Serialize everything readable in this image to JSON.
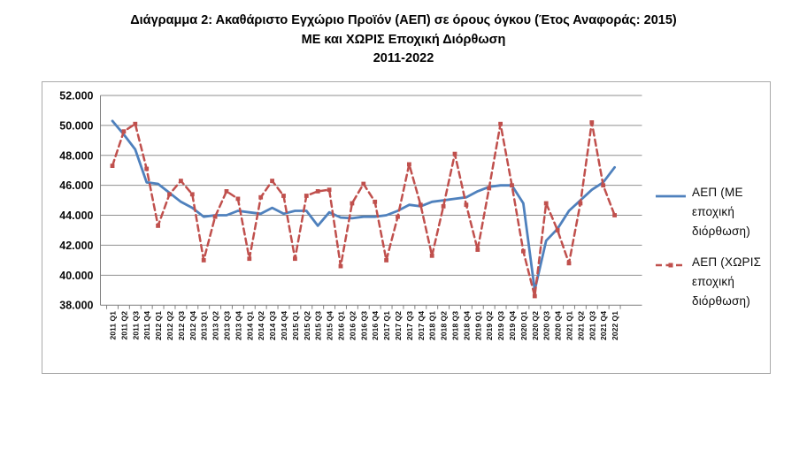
{
  "title": {
    "line1": "Διάγραμμα 2: Ακαθάριστο Εγχώριο Προϊόν (ΑΕΠ) σε όρους όγκου (Έτος Αναφοράς: 2015)",
    "line2": "ΜΕ και ΧΩΡΙΣ Εποχική Διόρθωση",
    "line3": "2011-2022"
  },
  "legend": {
    "items": [
      {
        "label": "ΑΕΠ (ΜΕ εποχική διόρθωση)",
        "color": "#4F81BD",
        "line_style": "solid",
        "marker": "none"
      },
      {
        "label": "ΑΕΠ (ΧΩΡΙΣ εποχική διόρθωση)",
        "color": "#C0504D",
        "line_style": "dashed",
        "marker": "square"
      }
    ]
  },
  "chart_data": {
    "type": "line",
    "title": "Διάγραμμα 2: Ακαθάριστο Εγχώριο Προϊόν (ΑΕΠ) σε όρους όγκου (Έτος Αναφοράς: 2015) ΜΕ και ΧΩΡΙΣ Εποχική Διόρθωση 2011-2022",
    "xlabel": "",
    "ylabel": "",
    "ylim": [
      38000,
      52000
    ],
    "y_tick_step": 2000,
    "grid": "horizontal",
    "legend_position": "right",
    "y_ticks": [
      {
        "value": 52000,
        "label": "52.000"
      },
      {
        "value": 50000,
        "label": "50.000"
      },
      {
        "value": 48000,
        "label": "48.000"
      },
      {
        "value": 46000,
        "label": "46.000"
      },
      {
        "value": 44000,
        "label": "44.000"
      },
      {
        "value": 42000,
        "label": "42.000"
      },
      {
        "value": 40000,
        "label": "40.000"
      },
      {
        "value": 38000,
        "label": "38.000"
      }
    ],
    "categories": [
      "2011 Q1",
      "2011 Q2",
      "2011 Q3",
      "2011 Q4",
      "2012 Q1",
      "2012 Q2",
      "2012 Q3",
      "2012 Q4",
      "2013 Q1",
      "2013 Q2",
      "2013 Q3",
      "2013 Q4",
      "2014 Q1",
      "2014 Q2",
      "2014 Q3",
      "2014 Q4",
      "2015 Q1",
      "2015 Q2",
      "2015 Q3",
      "2015 Q4",
      "2016 Q1",
      "2016 Q2",
      "2016 Q3",
      "2016 Q4",
      "2017 Q1",
      "2017 Q2",
      "2017 Q3",
      "2017 Q4",
      "2018 Q1",
      "2018 Q2",
      "2018 Q3",
      "2018 Q4",
      "2019 Q1",
      "2019 Q2",
      "2019 Q3",
      "2019 Q4",
      "2020 Q1",
      "2020 Q2",
      "2020 Q3",
      "2020 Q4",
      "2021 Q1",
      "2021 Q2",
      "2021 Q3",
      "2021 Q4",
      "2022 Q1"
    ],
    "series": [
      {
        "name": "ΑΕΠ (ΜΕ εποχική διόρθωση)",
        "color": "#4F81BD",
        "line_style": "solid",
        "marker": "none",
        "values": [
          50300,
          49400,
          48400,
          46200,
          46100,
          45500,
          44900,
          44500,
          43900,
          44000,
          44000,
          44300,
          44200,
          44100,
          44500,
          44100,
          44300,
          44300,
          43300,
          44200,
          43850,
          43800,
          43900,
          43900,
          44000,
          44300,
          44700,
          44600,
          44900,
          45000,
          45100,
          45200,
          45600,
          45900,
          46000,
          46000,
          44800,
          39000,
          42300,
          43100,
          44300,
          45000,
          45700,
          46200,
          47200
        ]
      },
      {
        "name": "ΑΕΠ (ΧΩΡΙΣ εποχική διόρθωση)",
        "color": "#C0504D",
        "line_style": "dashed",
        "marker": "square",
        "values": [
          47300,
          49600,
          50100,
          47100,
          43300,
          45400,
          46300,
          45400,
          41000,
          43900,
          45600,
          45100,
          41100,
          45200,
          46300,
          45300,
          41100,
          45300,
          45600,
          45700,
          40600,
          44800,
          46100,
          44900,
          41000,
          43900,
          47400,
          44700,
          41300,
          44600,
          48100,
          44700,
          41700,
          45800,
          50100,
          46000,
          41600,
          38600,
          44800,
          43000,
          40800,
          44800,
          50200,
          46000,
          44000
        ]
      }
    ]
  }
}
